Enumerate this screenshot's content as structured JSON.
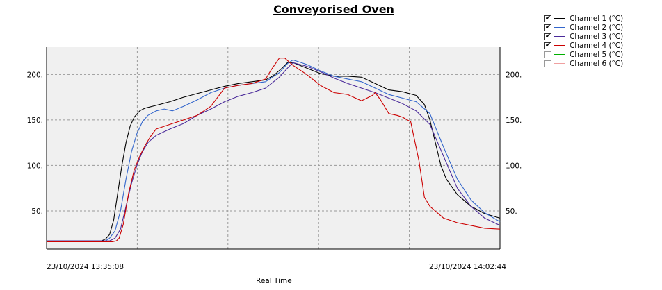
{
  "chart_data": {
    "type": "line",
    "title": "Conveyorised Oven",
    "xlabel": "Real Time",
    "ylabel": "",
    "x_start_label": "23/10/2024 13:35:08",
    "x_end_label": "23/10/2024 14:02:44",
    "x_range_seconds": [
      0,
      1656
    ],
    "ylim": [
      8,
      230
    ],
    "yticks": [
      {
        "value": 50,
        "label": "50."
      },
      {
        "value": 100,
        "label": "100."
      },
      {
        "value": 150,
        "label": "150."
      },
      {
        "value": 200,
        "label": "200."
      }
    ],
    "grid": true,
    "legend_position": "top-right",
    "series": [
      {
        "name": "Channel  1 (°C)",
        "color": "#000000",
        "checked": true,
        "points": [
          [
            0,
            17
          ],
          [
            200,
            17
          ],
          [
            215,
            19
          ],
          [
            230,
            24
          ],
          [
            245,
            40
          ],
          [
            260,
            70
          ],
          [
            275,
            100
          ],
          [
            290,
            125
          ],
          [
            305,
            143
          ],
          [
            320,
            153
          ],
          [
            340,
            160
          ],
          [
            360,
            163
          ],
          [
            400,
            166
          ],
          [
            450,
            170
          ],
          [
            500,
            175
          ],
          [
            550,
            179
          ],
          [
            600,
            183
          ],
          [
            650,
            187
          ],
          [
            700,
            190
          ],
          [
            750,
            192
          ],
          [
            800,
            194
          ],
          [
            830,
            199
          ],
          [
            860,
            207
          ],
          [
            880,
            213
          ],
          [
            900,
            213
          ],
          [
            950,
            207
          ],
          [
            1000,
            201
          ],
          [
            1050,
            198
          ],
          [
            1100,
            198
          ],
          [
            1150,
            197
          ],
          [
            1200,
            190
          ],
          [
            1250,
            183
          ],
          [
            1300,
            181
          ],
          [
            1350,
            177
          ],
          [
            1380,
            167
          ],
          [
            1400,
            150
          ],
          [
            1420,
            125
          ],
          [
            1440,
            100
          ],
          [
            1460,
            85
          ],
          [
            1500,
            68
          ],
          [
            1550,
            55
          ],
          [
            1600,
            47
          ],
          [
            1656,
            42
          ]
        ]
      },
      {
        "name": "Channel  2 (°C)",
        "color": "#3366cc",
        "checked": true,
        "points": [
          [
            0,
            17
          ],
          [
            215,
            17
          ],
          [
            230,
            20
          ],
          [
            250,
            28
          ],
          [
            270,
            50
          ],
          [
            290,
            85
          ],
          [
            310,
            115
          ],
          [
            330,
            135
          ],
          [
            350,
            148
          ],
          [
            370,
            155
          ],
          [
            400,
            160
          ],
          [
            430,
            162
          ],
          [
            460,
            160
          ],
          [
            500,
            165
          ],
          [
            550,
            172
          ],
          [
            600,
            180
          ],
          [
            650,
            185
          ],
          [
            700,
            188
          ],
          [
            750,
            190
          ],
          [
            800,
            192
          ],
          [
            850,
            202
          ],
          [
            880,
            212
          ],
          [
            900,
            216
          ],
          [
            950,
            211
          ],
          [
            1000,
            204
          ],
          [
            1050,
            198
          ],
          [
            1100,
            195
          ],
          [
            1150,
            192
          ],
          [
            1200,
            185
          ],
          [
            1250,
            178
          ],
          [
            1300,
            174
          ],
          [
            1350,
            170
          ],
          [
            1400,
            157
          ],
          [
            1450,
            120
          ],
          [
            1500,
            85
          ],
          [
            1550,
            62
          ],
          [
            1600,
            48
          ],
          [
            1656,
            38
          ]
        ]
      },
      {
        "name": "Channel  3 (°C)",
        "color": "#4a2a9a",
        "checked": true,
        "points": [
          [
            0,
            17
          ],
          [
            230,
            17
          ],
          [
            250,
            20
          ],
          [
            270,
            30
          ],
          [
            290,
            55
          ],
          [
            310,
            80
          ],
          [
            330,
            100
          ],
          [
            350,
            115
          ],
          [
            370,
            125
          ],
          [
            400,
            133
          ],
          [
            450,
            140
          ],
          [
            500,
            146
          ],
          [
            550,
            155
          ],
          [
            600,
            162
          ],
          [
            650,
            170
          ],
          [
            700,
            176
          ],
          [
            750,
            180
          ],
          [
            800,
            185
          ],
          [
            850,
            197
          ],
          [
            880,
            207
          ],
          [
            900,
            213
          ],
          [
            950,
            209
          ],
          [
            1000,
            203
          ],
          [
            1050,
            196
          ],
          [
            1100,
            190
          ],
          [
            1150,
            185
          ],
          [
            1200,
            180
          ],
          [
            1250,
            174
          ],
          [
            1300,
            168
          ],
          [
            1350,
            160
          ],
          [
            1400,
            145
          ],
          [
            1450,
            110
          ],
          [
            1500,
            75
          ],
          [
            1550,
            55
          ],
          [
            1600,
            42
          ],
          [
            1656,
            34
          ]
        ]
      },
      {
        "name": "Channel  4 (°C)",
        "color": "#cc0000",
        "checked": true,
        "points": [
          [
            0,
            16
          ],
          [
            240,
            16
          ],
          [
            255,
            17
          ],
          [
            265,
            20
          ],
          [
            280,
            35
          ],
          [
            300,
            70
          ],
          [
            320,
            95
          ],
          [
            340,
            110
          ],
          [
            360,
            122
          ],
          [
            380,
            132
          ],
          [
            400,
            140
          ],
          [
            450,
            145
          ],
          [
            500,
            150
          ],
          [
            550,
            155
          ],
          [
            600,
            165
          ],
          [
            650,
            185
          ],
          [
            700,
            188
          ],
          [
            750,
            190
          ],
          [
            800,
            195
          ],
          [
            820,
            205
          ],
          [
            850,
            218
          ],
          [
            870,
            218
          ],
          [
            900,
            210
          ],
          [
            950,
            200
          ],
          [
            1000,
            188
          ],
          [
            1050,
            180
          ],
          [
            1100,
            178
          ],
          [
            1150,
            171
          ],
          [
            1190,
            177
          ],
          [
            1200,
            180
          ],
          [
            1220,
            172
          ],
          [
            1250,
            157
          ],
          [
            1280,
            155
          ],
          [
            1300,
            153
          ],
          [
            1330,
            148
          ],
          [
            1360,
            105
          ],
          [
            1380,
            65
          ],
          [
            1400,
            55
          ],
          [
            1450,
            42
          ],
          [
            1500,
            37
          ],
          [
            1550,
            34
          ],
          [
            1600,
            31
          ],
          [
            1656,
            30
          ]
        ]
      },
      {
        "name": "Channel  5 (°C)",
        "color": "#00b000",
        "checked": false,
        "points": []
      },
      {
        "name": "Channel  6 (°C)",
        "color": "#f0a0a0",
        "checked": false,
        "points": []
      }
    ]
  }
}
